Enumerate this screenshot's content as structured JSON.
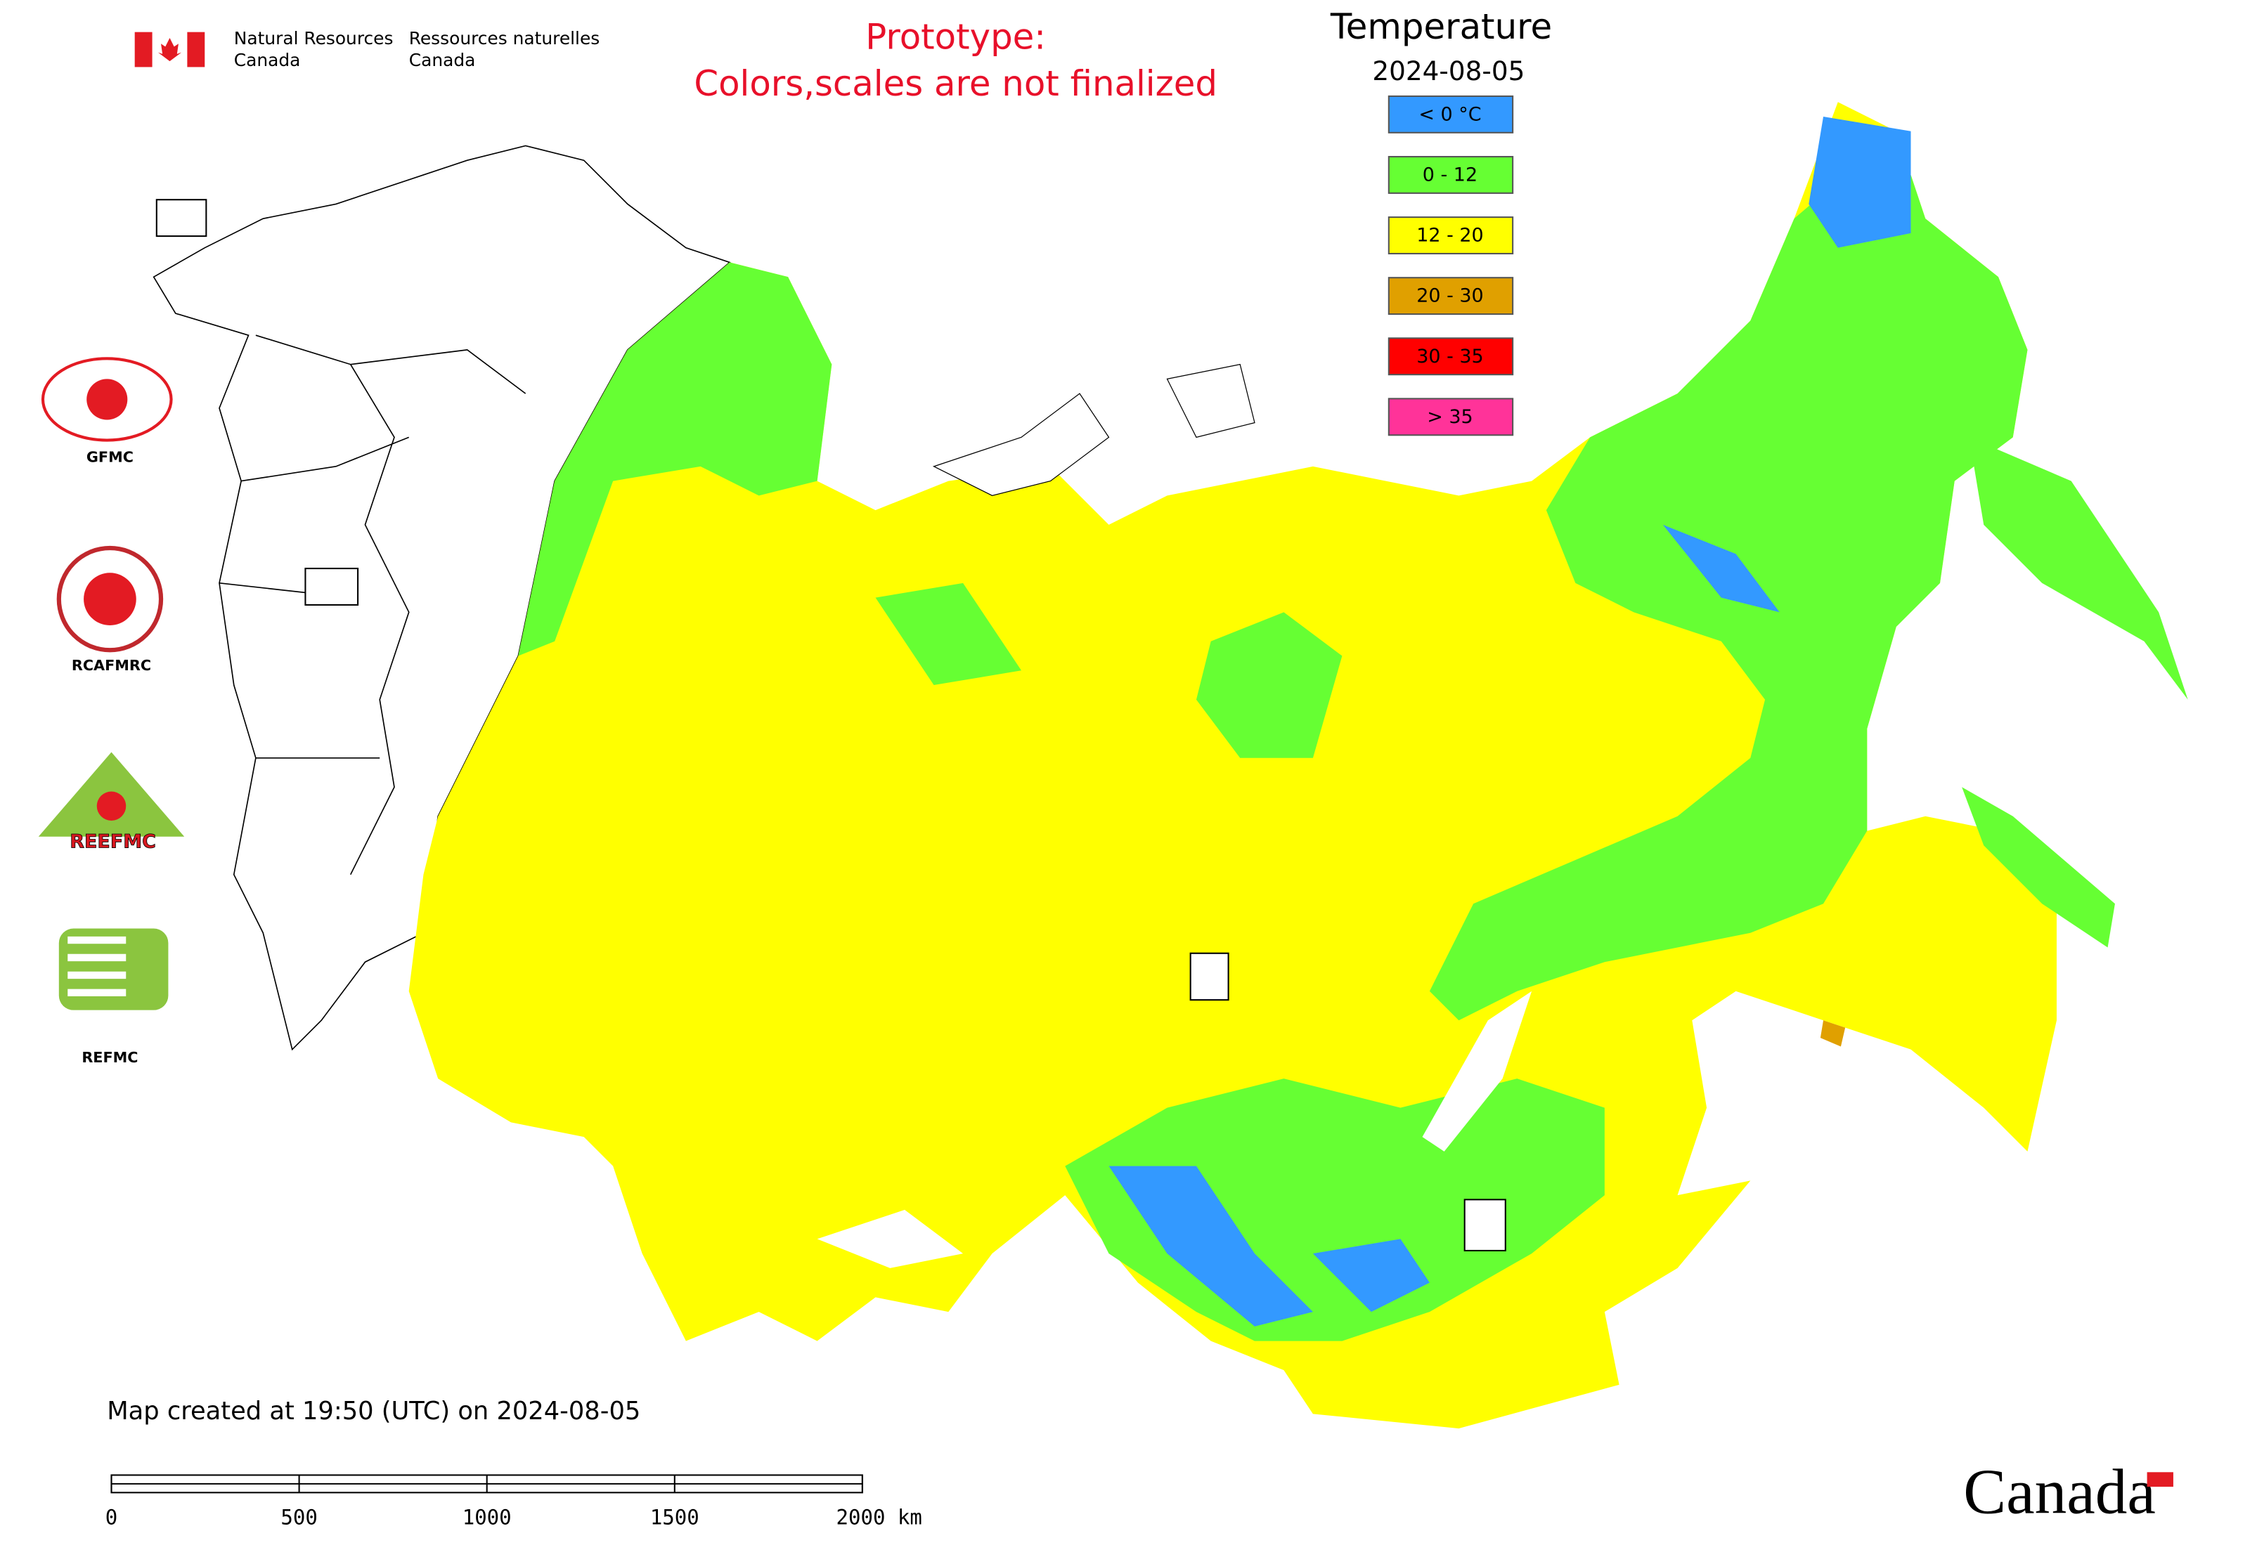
{
  "header": {
    "agency_en": [
      "Natural Resources",
      "Canada"
    ],
    "agency_fr": [
      "Ressources naturelles",
      "Canada"
    ],
    "notice": [
      "Prototype:",
      "Colors,scales are not finalized"
    ]
  },
  "legend": {
    "title": "Temperature",
    "date": "2024-08-05",
    "items": [
      {
        "label": "< 0 °C",
        "color": "#3399ff"
      },
      {
        "label": "0 - 12",
        "color": "#66ff33"
      },
      {
        "label": "12 - 20",
        "color": "#ffff00"
      },
      {
        "label": "20 - 30",
        "color": "#e0a000"
      },
      {
        "label": "30 - 35",
        "color": "#ff0000"
      },
      {
        "label": "> 35",
        "color": "#ff3399"
      }
    ]
  },
  "logos": [
    "GFMC",
    "RCAFMRC",
    "REEFMC",
    "REFMC"
  ],
  "footer": {
    "created": "Map created at 19:50 (UTC) on 2024-08-05",
    "scale_labels": [
      "0",
      "500",
      "1000",
      "1500",
      "2000 km"
    ],
    "wordmark": "Canada"
  }
}
